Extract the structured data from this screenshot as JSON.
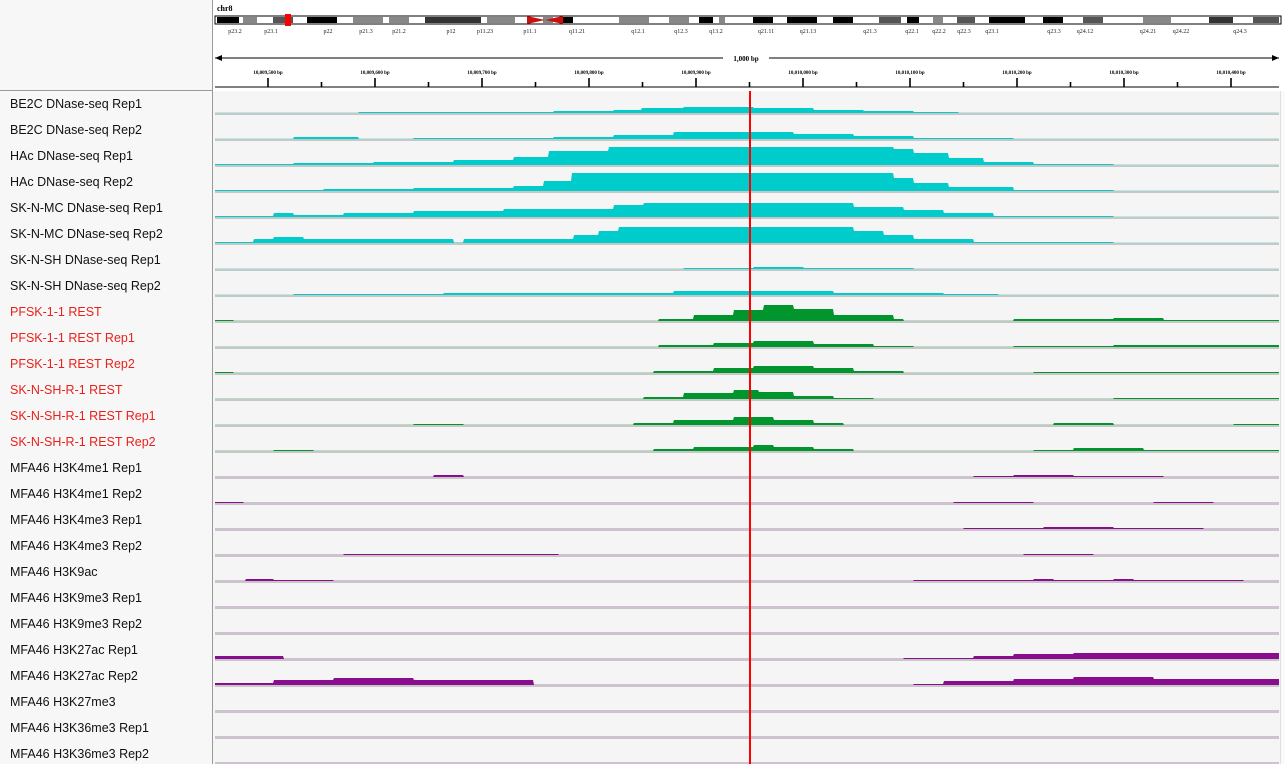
{
  "genome": {
    "chromosome": "chr8",
    "bands": [
      "p23.2",
      "p23.1",
      "p22",
      "p21.3",
      "p21.2",
      "p12",
      "p11.23",
      "p11.1",
      "q11.21",
      "q12.1",
      "q12.3",
      "q13.2",
      "q21.11",
      "q21.13",
      "q21.3",
      "q22.1",
      "q22.2",
      "q22.3",
      "q23.1",
      "q23.3",
      "q24.12",
      "q24.21",
      "q24.22",
      "q24.3"
    ]
  },
  "ruler": {
    "span_label": "1,000 bp",
    "ticks": [
      "10,009,500 bp",
      "10,009,600 bp",
      "10,009,700 bp",
      "10,009,800 bp",
      "10,009,900 bp",
      "10,010,000 bp",
      "10,010,100 bp",
      "10,010,200 bp",
      "10,010,300 bp",
      "10,010,400 bp"
    ]
  },
  "colors": {
    "dnase": "#00cccc",
    "rest": "#00962d",
    "histone": "#8b0d8f",
    "red_label": "#e8211c",
    "center_line": "#ff0000",
    "baseline": "#b8b8b8"
  },
  "tracks": [
    {
      "name": "BE2C DNase-seq Rep1",
      "type": "dnase",
      "label_color": "black"
    },
    {
      "name": "BE2C DNase-seq Rep2",
      "type": "dnase",
      "label_color": "black"
    },
    {
      "name": "HAc DNase-seq Rep1",
      "type": "dnase",
      "label_color": "black"
    },
    {
      "name": "HAc DNase-seq Rep2",
      "type": "dnase",
      "label_color": "black"
    },
    {
      "name": "SK-N-MC DNase-seq Rep1",
      "type": "dnase",
      "label_color": "black"
    },
    {
      "name": "SK-N-MC DNase-seq Rep2",
      "type": "dnase",
      "label_color": "black"
    },
    {
      "name": "SK-N-SH DNase-seq Rep1",
      "type": "dnase",
      "label_color": "black"
    },
    {
      "name": "SK-N-SH DNase-seq Rep2",
      "type": "dnase",
      "label_color": "black"
    },
    {
      "name": "PFSK-1-1 REST",
      "type": "rest",
      "label_color": "red"
    },
    {
      "name": "PFSK-1-1 REST Rep1",
      "type": "rest",
      "label_color": "red"
    },
    {
      "name": "PFSK-1-1 REST Rep2",
      "type": "rest",
      "label_color": "red"
    },
    {
      "name": "SK-N-SH-R-1 REST",
      "type": "rest",
      "label_color": "red"
    },
    {
      "name": "SK-N-SH-R-1 REST Rep1",
      "type": "rest",
      "label_color": "red"
    },
    {
      "name": "SK-N-SH-R-1 REST Rep2",
      "type": "rest",
      "label_color": "red"
    },
    {
      "name": "MFA46 H3K4me1 Rep1",
      "type": "histone",
      "label_color": "black"
    },
    {
      "name": "MFA46 H3K4me1 Rep2",
      "type": "histone",
      "label_color": "black"
    },
    {
      "name": "MFA46 H3K4me3 Rep1",
      "type": "histone",
      "label_color": "black"
    },
    {
      "name": "MFA46 H3K4me3 Rep2",
      "type": "histone",
      "label_color": "black"
    },
    {
      "name": "MFA46 H3K9ac",
      "type": "histone",
      "label_color": "black"
    },
    {
      "name": "MFA46 H3K9me3 Rep1",
      "type": "histone",
      "label_color": "black"
    },
    {
      "name": "MFA46 H3K9me3 Rep2",
      "type": "histone",
      "label_color": "black"
    },
    {
      "name": "MFA46 H3K27ac Rep1",
      "type": "histone",
      "label_color": "black"
    },
    {
      "name": "MFA46 H3K27ac Rep2",
      "type": "histone",
      "label_color": "black"
    },
    {
      "name": "MFA46 H3K27me3",
      "type": "histone",
      "label_color": "black"
    },
    {
      "name": "MFA46 H3K36me3 Rep1",
      "type": "histone",
      "label_color": "black"
    },
    {
      "name": "MFA46 H3K36me3 Rep2",
      "type": "histone",
      "label_color": "black"
    }
  ]
}
